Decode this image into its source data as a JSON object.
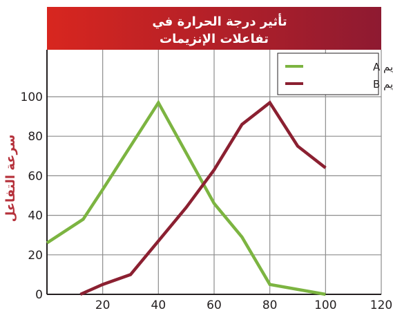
{
  "chart_data": {
    "type": "line",
    "title_lines": [
      "تأثير درجة الحرارة في",
      "تفاعلات الإنزيمات"
    ],
    "ylabel": "سرعة التفاعل",
    "xlabel": "",
    "xlim": [
      0,
      120
    ],
    "ylim": [
      0,
      100
    ],
    "x_ticks": [
      20,
      40,
      60,
      80,
      100,
      120
    ],
    "y_ticks": [
      0,
      20,
      40,
      60,
      80,
      100
    ],
    "grid": true,
    "legend_position": "top-right",
    "series": [
      {
        "name": "الإنزيم A",
        "color": "#7cb441",
        "points": [
          [
            0,
            26
          ],
          [
            13,
            38
          ],
          [
            20,
            53
          ],
          [
            40,
            97
          ],
          [
            60,
            46
          ],
          [
            70,
            29
          ],
          [
            80,
            5
          ],
          [
            100,
            0
          ]
        ]
      },
      {
        "name": "الإنزيم B",
        "color": "#8b2031",
        "points": [
          [
            12,
            0
          ],
          [
            20,
            5
          ],
          [
            30,
            10
          ],
          [
            40,
            27
          ],
          [
            50,
            44
          ],
          [
            60,
            63
          ],
          [
            70,
            86
          ],
          [
            80,
            97
          ],
          [
            90,
            75
          ],
          [
            100,
            64
          ]
        ]
      }
    ]
  },
  "colors": {
    "title_gradient": [
      "#d8261f",
      "#8e1a31"
    ],
    "axis_label": "#b5303a",
    "grid": "#8c8c8c"
  }
}
